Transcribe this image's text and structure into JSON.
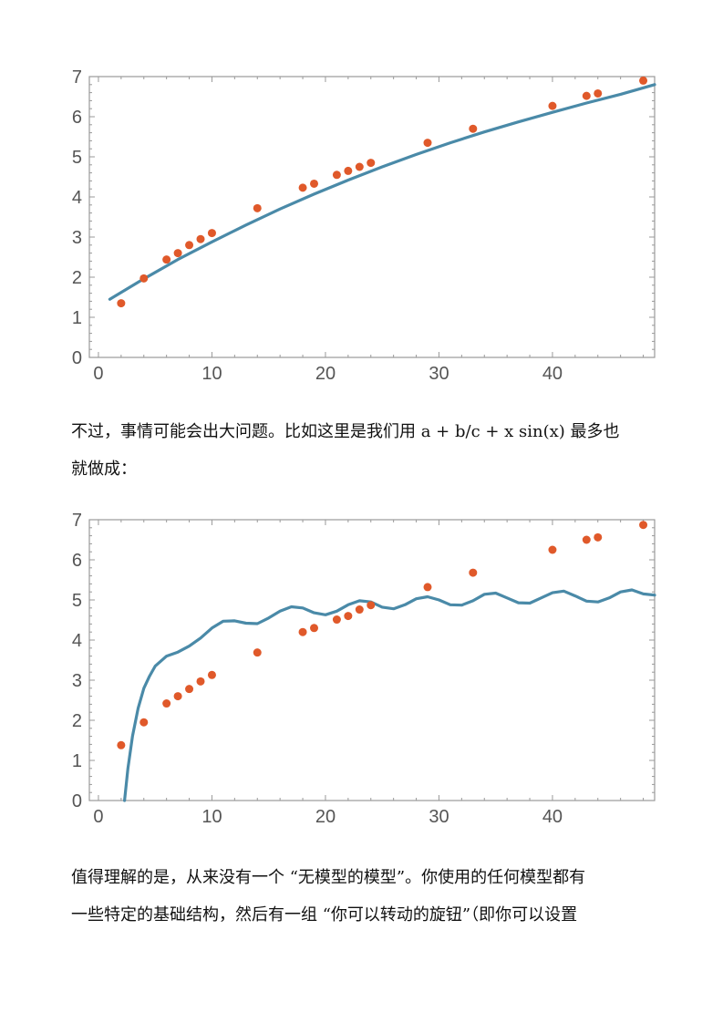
{
  "paragraphs": [
    {
      "line1": "不过，事情可能会出大问题。比如这里是我们用 a + b/c + x sin(x) 最多也",
      "line2": "就做成："
    },
    {
      "line1": "值得理解的是，从来没有一个 “无模型的模型”。你使用的任何模型都有",
      "line2": "一些特定的基础结构，然后有一组 “你可以转动的旋钮”（即你可以设置"
    }
  ],
  "colors": {
    "points": "#e0592a",
    "curve": "#4a8aa8",
    "frame": "#999999",
    "tick_label": "#555555"
  },
  "chart_data": [
    {
      "type": "scatter",
      "title": "",
      "xlabel": "",
      "ylabel": "",
      "xlim": [
        -0.8,
        49
      ],
      "ylim": [
        0,
        7
      ],
      "x_ticks": [
        0,
        10,
        20,
        30,
        40
      ],
      "y_ticks": [
        0,
        1,
        2,
        3,
        4,
        5,
        6,
        7
      ],
      "grid": false,
      "series": [
        {
          "kind": "points",
          "x": [
            2,
            4,
            6,
            7,
            8,
            9,
            10,
            14,
            18,
            19,
            21,
            22,
            23,
            24,
            29,
            33,
            40,
            43,
            44,
            48
          ],
          "y": [
            1.35,
            1.97,
            2.44,
            2.6,
            2.8,
            2.95,
            3.1,
            3.72,
            4.23,
            4.33,
            4.55,
            4.65,
            4.75,
            4.85,
            5.35,
            5.7,
            6.27,
            6.52,
            6.58,
            6.9
          ]
        },
        {
          "kind": "curve",
          "x": [
            1,
            4,
            7,
            10,
            13,
            16,
            19,
            22,
            25,
            28,
            31,
            34,
            37,
            40,
            43,
            46,
            49
          ],
          "y": [
            1.45,
            1.96,
            2.44,
            2.88,
            3.3,
            3.7,
            4.07,
            4.42,
            4.75,
            5.06,
            5.35,
            5.62,
            5.87,
            6.11,
            6.34,
            6.56,
            6.8
          ]
        }
      ]
    },
    {
      "type": "scatter",
      "title": "",
      "xlabel": "",
      "ylabel": "",
      "xlim": [
        -0.8,
        49
      ],
      "ylim": [
        0,
        7
      ],
      "x_ticks": [
        0,
        10,
        20,
        30,
        40
      ],
      "y_ticks": [
        0,
        1,
        2,
        3,
        4,
        5,
        6,
        7
      ],
      "grid": false,
      "series": [
        {
          "kind": "points",
          "x": [
            2,
            4,
            6,
            7,
            8,
            9,
            10,
            14,
            18,
            19,
            21,
            22,
            23,
            24,
            29,
            33,
            40,
            43,
            44,
            48
          ],
          "y": [
            1.38,
            1.95,
            2.42,
            2.6,
            2.78,
            2.97,
            3.13,
            3.69,
            4.2,
            4.3,
            4.51,
            4.6,
            4.76,
            4.87,
            5.32,
            5.68,
            6.25,
            6.5,
            6.56,
            6.87
          ]
        },
        {
          "kind": "curve",
          "x": [
            2.3,
            2.6,
            3,
            3.5,
            4,
            4.5,
            5,
            6,
            7,
            8,
            9,
            10,
            11,
            12,
            13,
            14,
            15,
            16,
            17,
            18,
            19,
            20,
            21,
            22,
            23,
            24,
            25,
            26,
            27,
            28,
            29,
            30,
            31,
            32,
            33,
            34,
            35,
            36,
            37,
            38,
            39,
            40,
            41,
            42,
            43,
            44,
            45,
            46,
            47,
            48,
            49
          ],
          "y": [
            0,
            0.8,
            1.6,
            2.3,
            2.8,
            3.1,
            3.35,
            3.6,
            3.7,
            3.85,
            4.05,
            4.3,
            4.47,
            4.48,
            4.42,
            4.41,
            4.55,
            4.72,
            4.83,
            4.8,
            4.68,
            4.63,
            4.72,
            4.88,
            4.98,
            4.95,
            4.82,
            4.78,
            4.88,
            5.03,
            5.08,
            5.0,
            4.88,
            4.87,
            4.98,
            5.14,
            5.17,
            5.05,
            4.93,
            4.92,
            5.05,
            5.18,
            5.22,
            5.1,
            4.97,
            4.95,
            5.05,
            5.2,
            5.25,
            5.15,
            5.12
          ]
        }
      ]
    }
  ]
}
